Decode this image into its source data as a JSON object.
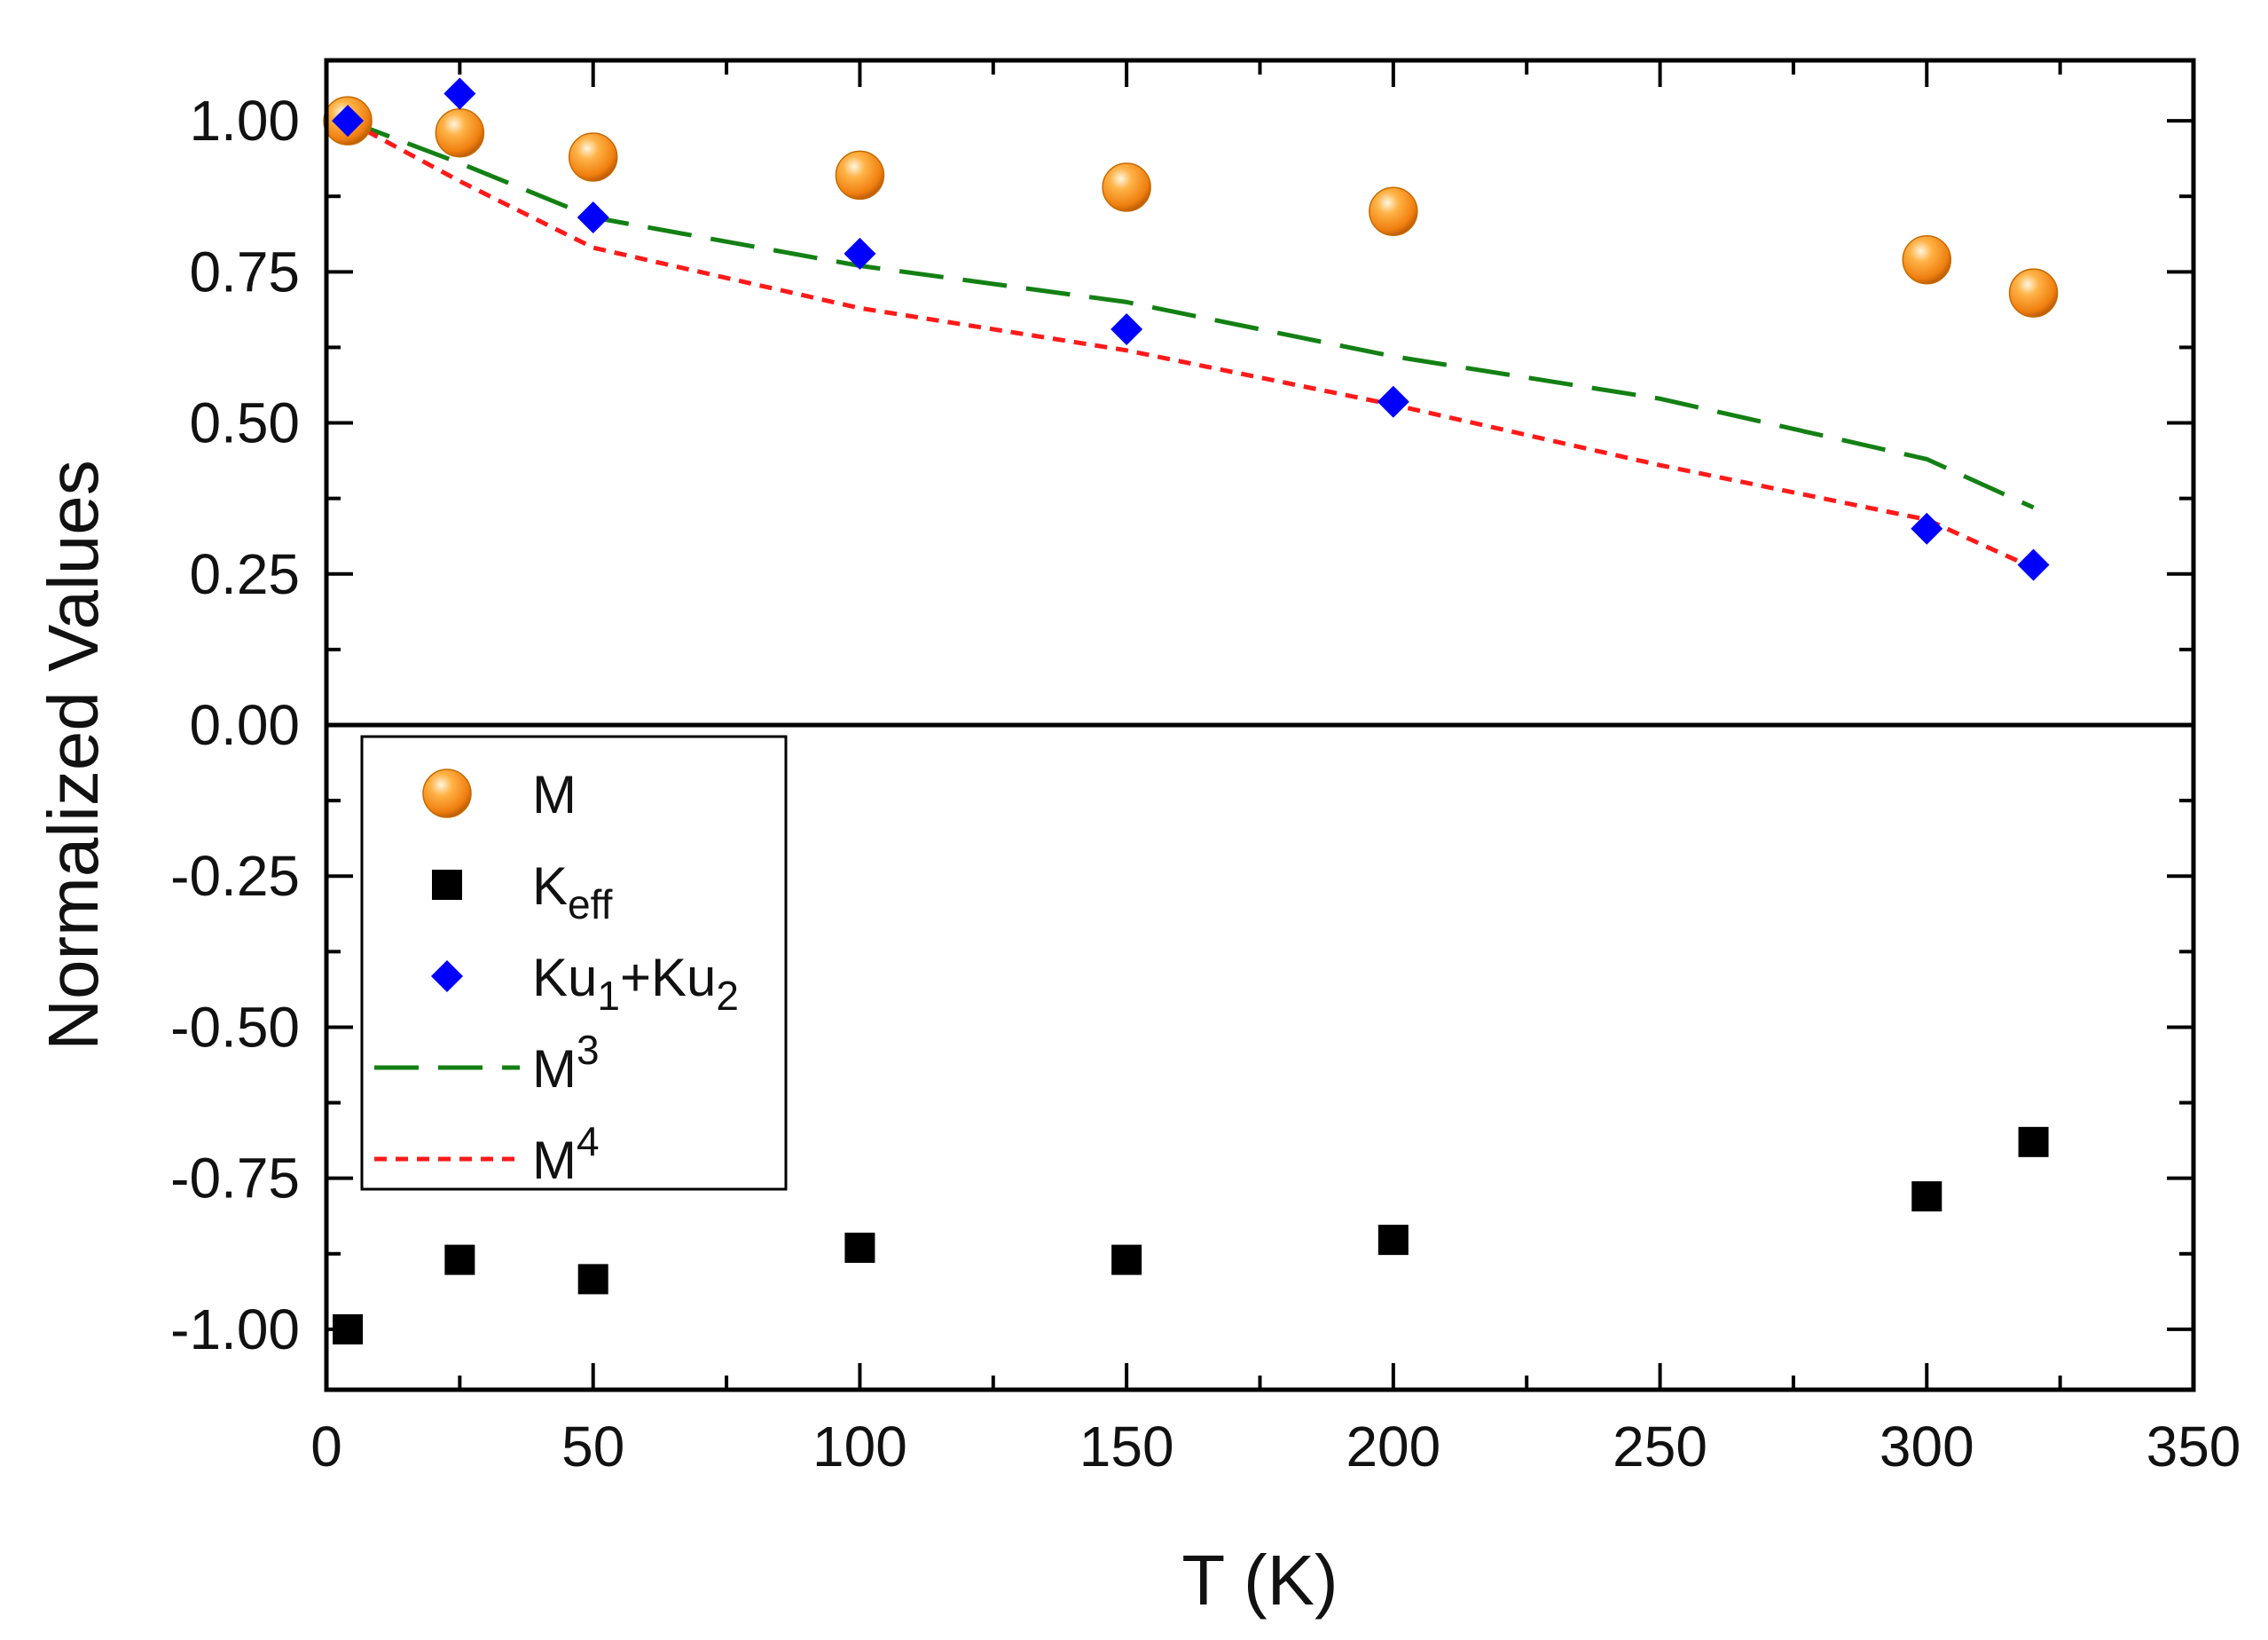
{
  "chart_data": {
    "type": "scatter",
    "xlabel": "T (K)",
    "ylabel": "Normalized Values",
    "xlim": [
      0,
      350
    ],
    "ylim": [
      -1.1,
      1.1
    ],
    "xticks": [
      0,
      50,
      100,
      150,
      200,
      250,
      300,
      350
    ],
    "xtick_labels": [
      "0",
      "50",
      "100",
      "150",
      "200",
      "250",
      "300",
      "350"
    ],
    "yticks": [
      1.0,
      0.75,
      0.5,
      0.25,
      0.0,
      -0.25,
      -0.5,
      -0.75,
      -1.0
    ],
    "ytick_labels": [
      "1.00",
      "0.75",
      "0.50",
      "0.25",
      "0.00",
      "-0.25",
      "-0.50",
      "-0.75",
      "-1.00"
    ],
    "zero_line": true,
    "legend_position": "center-left",
    "series": [
      {
        "name": "M",
        "legend": {
          "main": "M",
          "sub": "",
          "sup": ""
        },
        "kind": "marker",
        "marker": "sphere",
        "color": "#f28c1a",
        "x": [
          4,
          25,
          50,
          100,
          150,
          200,
          300,
          320
        ],
        "y": [
          1.0,
          0.98,
          0.94,
          0.91,
          0.89,
          0.85,
          0.77,
          0.715
        ]
      },
      {
        "name": "Keff",
        "legend": {
          "main": "K",
          "sub": "eff",
          "sup": ""
        },
        "kind": "marker",
        "marker": "square",
        "color": "#000000",
        "x": [
          4,
          25,
          50,
          100,
          150,
          200,
          300,
          320
        ],
        "y": [
          -1.0,
          -0.885,
          -0.917,
          -0.865,
          -0.885,
          -0.852,
          -0.78,
          -0.69
        ]
      },
      {
        "name": "Ku1+Ku2",
        "legend": {
          "main": "Ku",
          "sub": "1",
          "main2": "+Ku",
          "sub2": "2",
          "sup": ""
        },
        "kind": "marker",
        "marker": "diamond",
        "color": "#0000ff",
        "x": [
          4,
          25,
          50,
          100,
          150,
          200,
          300,
          320
        ],
        "y": [
          1.0,
          1.045,
          0.84,
          0.78,
          0.655,
          0.535,
          0.325,
          0.265
        ]
      },
      {
        "name": "M3",
        "legend": {
          "main": "M",
          "sub": "",
          "sup": "3"
        },
        "kind": "line",
        "dash": "50 22",
        "color": "#138013",
        "x": [
          4,
          25,
          50,
          100,
          150,
          200,
          250,
          300,
          320
        ],
        "y": [
          1.0,
          0.93,
          0.84,
          0.76,
          0.7,
          0.61,
          0.54,
          0.44,
          0.36
        ]
      },
      {
        "name": "M4",
        "legend": {
          "main": "M",
          "sub": "",
          "sup": "4"
        },
        "kind": "line",
        "dash": "14 10",
        "color": "#ff1a1a",
        "x": [
          4,
          25,
          50,
          100,
          150,
          200,
          250,
          300,
          320
        ],
        "y": [
          1.0,
          0.9,
          0.79,
          0.69,
          0.62,
          0.53,
          0.43,
          0.34,
          0.26
        ]
      }
    ]
  }
}
